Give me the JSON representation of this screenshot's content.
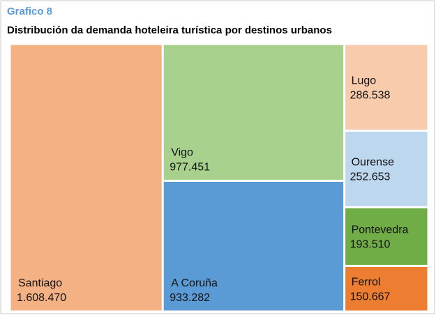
{
  "chart_data": {
    "type": "treemap",
    "title": "Grafico 8",
    "subtitle": "Distribución da demanda hoteleira turística por destinos urbanos",
    "categories": [
      "Santiago",
      "Vigo",
      "A Coruña",
      "Lugo",
      "Ourense",
      "Pontevedra",
      "Ferrol"
    ],
    "values": [
      1608470,
      977451,
      933282,
      286538,
      252653,
      193510,
      150667
    ],
    "value_labels": [
      "1.608.470",
      "977.451",
      "933.282",
      "286.538",
      "252.653",
      "193.510",
      "150.667"
    ],
    "colors": [
      "#f4b183",
      "#a9d18e",
      "#5b9bd5",
      "#f8cbad",
      "#bdd7ee",
      "#70ad47",
      "#ed7d31"
    ]
  }
}
